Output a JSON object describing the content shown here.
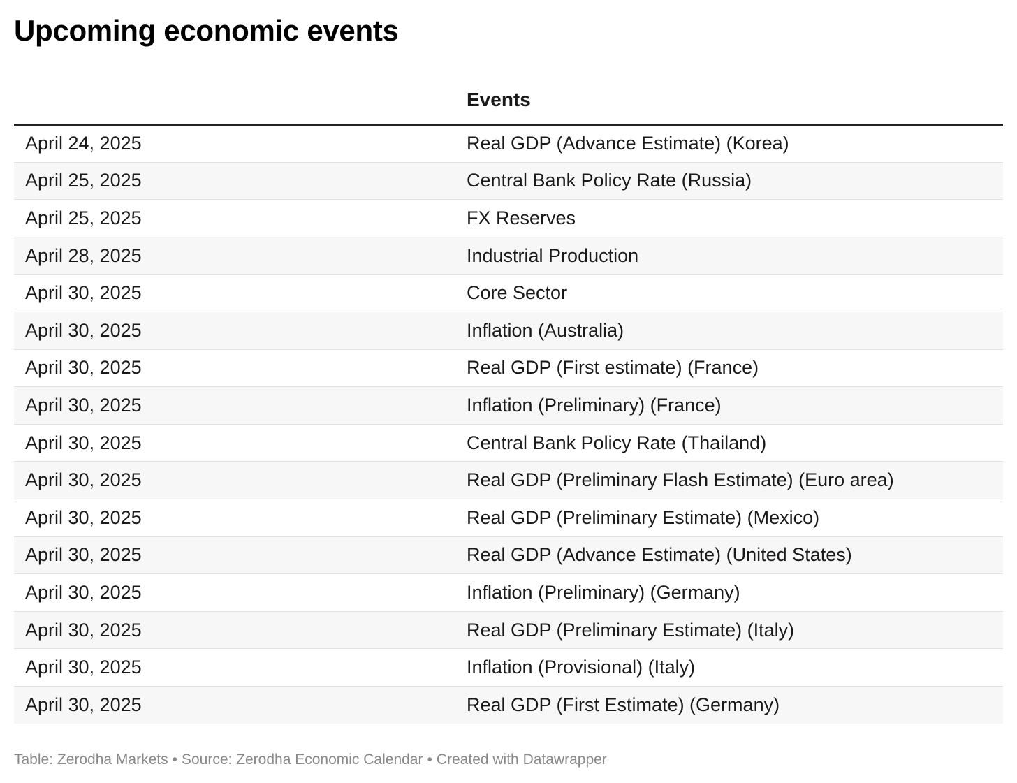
{
  "title": "Upcoming economic events",
  "table": {
    "columns": [
      "",
      "Events"
    ],
    "rows": [
      {
        "date": "April 24, 2025",
        "event": "Real GDP (Advance Estimate) (Korea)"
      },
      {
        "date": "April 25, 2025",
        "event": "Central Bank Policy Rate (Russia)"
      },
      {
        "date": "April 25, 2025",
        "event": "FX Reserves"
      },
      {
        "date": "April 28, 2025",
        "event": "Industrial Production"
      },
      {
        "date": "April 30, 2025",
        "event": "Core Sector"
      },
      {
        "date": "April 30, 2025",
        "event": "Inflation (Australia)"
      },
      {
        "date": "April 30, 2025",
        "event": "Real GDP (First estimate) (France)"
      },
      {
        "date": "April 30, 2025",
        "event": "Inflation (Preliminary) (France)"
      },
      {
        "date": "April 30, 2025",
        "event": "Central Bank Policy Rate (Thailand)"
      },
      {
        "date": "April 30, 2025",
        "event": "Real GDP (Preliminary Flash Estimate) (Euro area)"
      },
      {
        "date": "April 30, 2025",
        "event": "Real GDP (Preliminary Estimate) (Mexico)"
      },
      {
        "date": "April 30, 2025",
        "event": "Real GDP (Advance Estimate) (United States)"
      },
      {
        "date": "April 30, 2025",
        "event": "Inflation (Preliminary) (Germany)"
      },
      {
        "date": "April 30, 2025",
        "event": "Real GDP (Preliminary Estimate) (Italy)"
      },
      {
        "date": "April 30, 2025",
        "event": "Inflation (Provisional) (Italy)"
      },
      {
        "date": "April 30, 2025",
        "event": "Real GDP (First Estimate) (Germany)"
      }
    ]
  },
  "footer": {
    "table_credit": "Table: Zerodha Markets",
    "source": "Source: Zerodha Economic Calendar",
    "created_with": "Created with Datawrapper",
    "separator": "•"
  },
  "colors": {
    "header_rule": "#222222",
    "row_divider": "#e2e2e2",
    "zebra_row": "#f7f7f7",
    "footer_text": "#888888"
  }
}
